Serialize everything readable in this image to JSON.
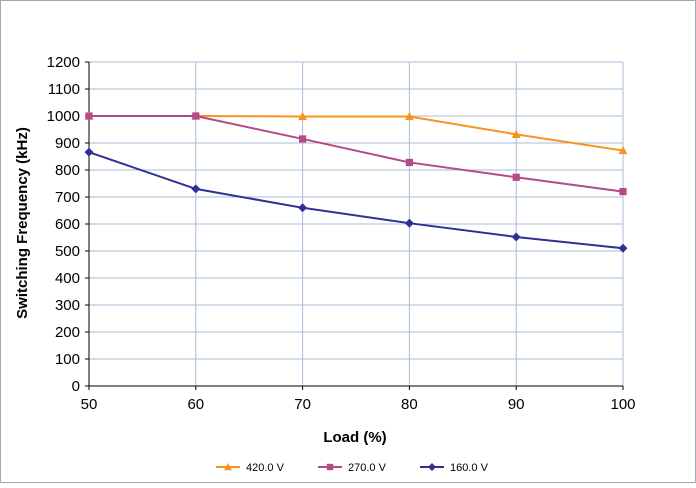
{
  "chart_data": {
    "type": "line",
    "title": "",
    "xlabel": "Load (%)",
    "ylabel": "Switching Frequency (kHz)",
    "xlim": [
      50,
      100
    ],
    "ylim": [
      0,
      1200
    ],
    "x_ticks": [
      50,
      60,
      70,
      80,
      90,
      100
    ],
    "y_ticks": [
      0,
      100,
      200,
      300,
      400,
      500,
      600,
      700,
      800,
      900,
      1000,
      1100,
      1200
    ],
    "grid": true,
    "legend_position": "bottom",
    "x": [
      50,
      60,
      70,
      80,
      90,
      100
    ],
    "series": [
      {
        "name": "420.0 V",
        "values": [
          1000,
          1000,
          998,
          998,
          932,
          872
        ],
        "color": "#F7941D",
        "marker": "triangle"
      },
      {
        "name": "270.0 V",
        "values": [
          1000,
          1000,
          915,
          828,
          773,
          720
        ],
        "color": "#B44A86",
        "marker": "square"
      },
      {
        "name": "160.0 V",
        "values": [
          866,
          730,
          660,
          603,
          552,
          510
        ],
        "color": "#2E3192",
        "marker": "diamond"
      }
    ]
  }
}
